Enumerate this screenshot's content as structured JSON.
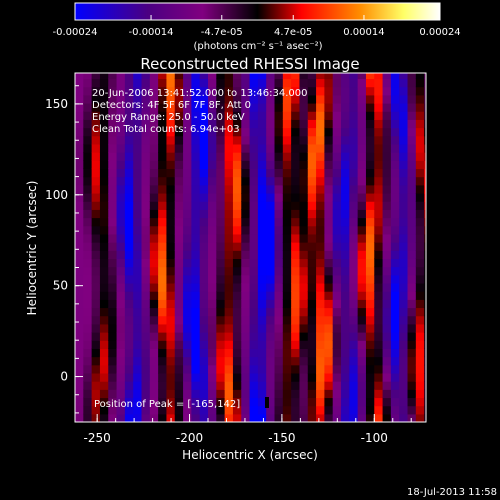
{
  "chart_data": {
    "type": "heatmap",
    "title": "Reconstructed RHESSI Image",
    "xlabel": "Heliocentric X (arcsec)",
    "ylabel": "Heliocentric Y (arcsec)",
    "xlim": [
      -262,
      -72
    ],
    "ylim": [
      -25,
      167
    ],
    "xticks": [
      -250,
      -200,
      -150,
      -100
    ],
    "yticks": [
      0,
      50,
      100,
      150
    ],
    "colorbar": {
      "ticks": [
        -0.00024,
        -0.00014,
        -4.7e-05,
        4.7e-05,
        0.00014,
        0.00024
      ],
      "tick_labels": [
        "-0.00024",
        "-0.00014",
        "-4.7e-05",
        "4.7e-05",
        "0.00014",
        "0.00024"
      ],
      "range": [
        -0.00024,
        0.00024
      ],
      "unit_label": "(photons cm⁻² s⁻¹ asec⁻²)",
      "colormap": [
        "#0000ff",
        "#4b0082",
        "#800080",
        "#000000",
        "#ff0000",
        "#ff8c00",
        "#ffff66",
        "#ffffff"
      ]
    },
    "annotations": [
      "20-Jun-2006 13:41:52.000 to 13:46:34.000",
      "Detectors: 4F 5F 6F 7F 8F, Att 0",
      "Energy Range: 25.0 - 50.0 keV",
      "Clean    Total counts: 6.94e+03"
    ],
    "peak_label": "Position of Peak = [-165,142]",
    "peak": {
      "x": -165,
      "y": 142
    },
    "footer_date": "18-Jul-2013 11:58",
    "stripes": [
      {
        "x": -250,
        "intensity": 0.6
      },
      {
        "x": -233,
        "intensity": -0.8
      },
      {
        "x": -215,
        "intensity": 0.9
      },
      {
        "x": -198,
        "intensity": -0.9
      },
      {
        "x": -180,
        "intensity": 0.85
      },
      {
        "x": -163,
        "intensity": -1.0
      },
      {
        "x": -147,
        "intensity": 0.8
      },
      {
        "x": -132,
        "intensity": 0.95
      },
      {
        "x": -117,
        "intensity": -0.7
      },
      {
        "x": -103,
        "intensity": 0.9
      },
      {
        "x": -88,
        "intensity": -0.8
      },
      {
        "x": -76,
        "intensity": 0.7
      }
    ]
  }
}
